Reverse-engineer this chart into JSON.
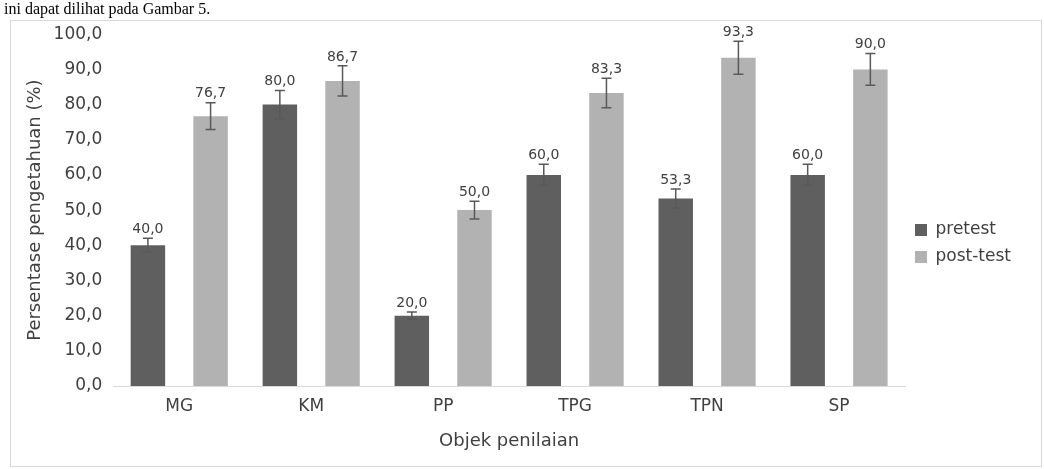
{
  "chart_data": {
    "type": "bar",
    "xlabel": "Objek penilaian",
    "ylabel": "Persentase pengetahuan (%)",
    "annotations": [
      "ini dapat dilihat pada Gambar 5."
    ],
    "categories": [
      "MG",
      "KM",
      "PP",
      "TPG",
      "TPN",
      "SP"
    ],
    "series": [
      {
        "name": "pretest",
        "color": "#5f5f5f",
        "values": [
          40.0,
          80.0,
          20.0,
          60.0,
          53.3,
          60.0
        ],
        "errors": [
          2,
          4,
          1,
          3,
          2.7,
          3
        ],
        "value_labels": [
          "40,0",
          "80,0",
          "20,0",
          "60,0",
          "53,3",
          "60,0"
        ]
      },
      {
        "name": "post-test",
        "color": "#b2b2b2",
        "values": [
          76.7,
          86.7,
          50.0,
          83.3,
          93.3,
          90.0
        ],
        "errors": [
          3.8,
          4.3,
          2.5,
          4.2,
          4.7,
          4.5
        ],
        "value_labels": [
          "76,7",
          "86,7",
          "50,0",
          "83,3",
          "93,3",
          "90,0"
        ]
      }
    ],
    "ylim": [
      0,
      100
    ],
    "yticks": [
      {
        "value": 0,
        "label": "0,0"
      },
      {
        "value": 10,
        "label": "10,0"
      },
      {
        "value": 20,
        "label": "20,0"
      },
      {
        "value": 30,
        "label": "30,0"
      },
      {
        "value": 40,
        "label": "40,0"
      },
      {
        "value": 50,
        "label": "50,0"
      },
      {
        "value": 60,
        "label": "60,0"
      },
      {
        "value": 70,
        "label": "70,0"
      },
      {
        "value": 80,
        "label": "80,0"
      },
      {
        "value": 90,
        "label": "90,0"
      },
      {
        "value": 100,
        "label": "100,0"
      }
    ],
    "grid": false,
    "legend": "right"
  }
}
